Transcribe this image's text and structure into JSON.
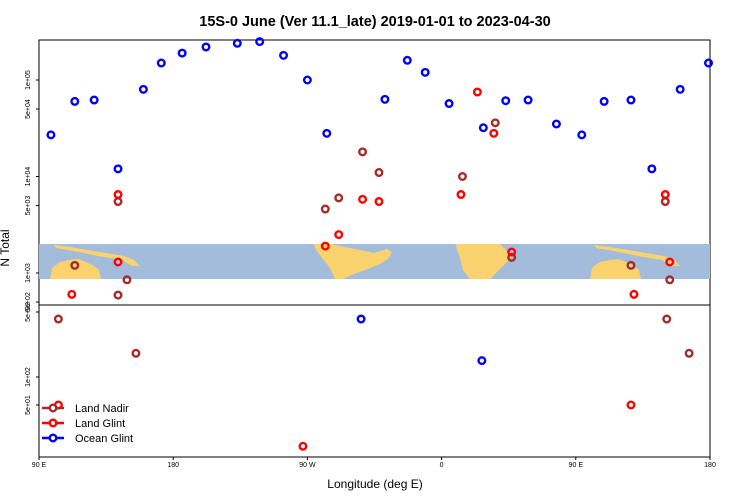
{
  "chart_data": {
    "type": "scatter",
    "title": "15S-0 June (Ver 11.1_late)   2019-01-01 to 2023-04-30",
    "xlabel": "Longitude (deg E)",
    "ylabel": "N Total",
    "x_ticks": [
      {
        "value": 90,
        "label": "90 E"
      },
      {
        "value": 180,
        "label": "180"
      },
      {
        "value": 270,
        "label": "90 W"
      },
      {
        "value": 360,
        "label": "0"
      },
      {
        "value": 450,
        "label": "90 E"
      },
      {
        "value": 540,
        "label": "180"
      }
    ],
    "xlim": [
      90,
      540
    ],
    "upper_panel": {
      "scale": "log",
      "ylim": [
        1000,
        250000
      ],
      "y_ticks": [
        {
          "value": 500,
          "label": "5e+02"
        },
        {
          "value": 1000,
          "label": "1e+03"
        },
        {
          "value": 5000,
          "label": "5e+03"
        },
        {
          "value": 10000,
          "label": "1e+04"
        },
        {
          "value": 50000,
          "label": "5e+04"
        },
        {
          "value": 100000,
          "label": "1e+05"
        }
      ]
    },
    "lower_panel": {
      "scale": "log",
      "ylim": [
        10,
        500
      ],
      "y_ticks": [
        {
          "value": 500,
          "label": "5e+02"
        },
        {
          "value": 100,
          "label": "1e+02"
        },
        {
          "value": 50,
          "label": "5e+01"
        }
      ]
    },
    "map_strip": {
      "ocean_color": "#a3bcdc",
      "land_color": "#fad36e"
    },
    "legend": {
      "position": "bottom-left"
    },
    "series": [
      {
        "name": "Land Nadir",
        "color": "#a52a2a",
        "points": [
          [
            103,
            420
          ],
          [
            114,
            1200
          ],
          [
            143,
            5500
          ],
          [
            143,
            590
          ],
          [
            155,
            180
          ],
          [
            149,
            850
          ],
          [
            282,
            4600
          ],
          [
            291,
            6000
          ],
          [
            307,
            18000
          ],
          [
            318,
            11000
          ],
          [
            374,
            10000
          ],
          [
            396,
            36000
          ],
          [
            407,
            1450
          ],
          [
            487,
            1200
          ],
          [
            510,
            5500
          ],
          [
            513,
            850
          ],
          [
            511,
            420
          ],
          [
            526,
            180
          ]
        ]
      },
      {
        "name": "Land Glint",
        "color": "#ff0000",
        "points": [
          [
            103,
            50
          ],
          [
            112,
            600
          ],
          [
            143,
            6500
          ],
          [
            143,
            1300
          ],
          [
            267,
            18
          ],
          [
            282,
            1900
          ],
          [
            291,
            2500
          ],
          [
            307,
            5800
          ],
          [
            318,
            5500
          ],
          [
            373,
            6500
          ],
          [
            384,
            75000
          ],
          [
            395,
            28000
          ],
          [
            407,
            1650
          ],
          [
            487,
            50
          ],
          [
            489,
            600
          ],
          [
            510,
            6500
          ],
          [
            513,
            1300
          ]
        ]
      },
      {
        "name": "Ocean Glint",
        "color": "#0000ff",
        "points": [
          [
            98,
            27000
          ],
          [
            114,
            60000
          ],
          [
            127,
            62000
          ],
          [
            143,
            12000
          ],
          [
            160,
            80000
          ],
          [
            172,
            150000
          ],
          [
            186,
            190000
          ],
          [
            202,
            220000
          ],
          [
            223,
            240000
          ],
          [
            238,
            250000
          ],
          [
            254,
            180000
          ],
          [
            270,
            100000
          ],
          [
            283,
            28000
          ],
          [
            306,
            420
          ],
          [
            322,
            63000
          ],
          [
            337,
            160000
          ],
          [
            349,
            120000
          ],
          [
            365,
            57000
          ],
          [
            388,
            32000
          ],
          [
            403,
            61000
          ],
          [
            418,
            62000
          ],
          [
            437,
            35000
          ],
          [
            454,
            27000
          ],
          [
            469,
            60000
          ],
          [
            487,
            62000
          ],
          [
            501,
            12000
          ],
          [
            520,
            80000
          ],
          [
            539,
            150000
          ],
          [
            387,
            150
          ]
        ]
      }
    ]
  }
}
